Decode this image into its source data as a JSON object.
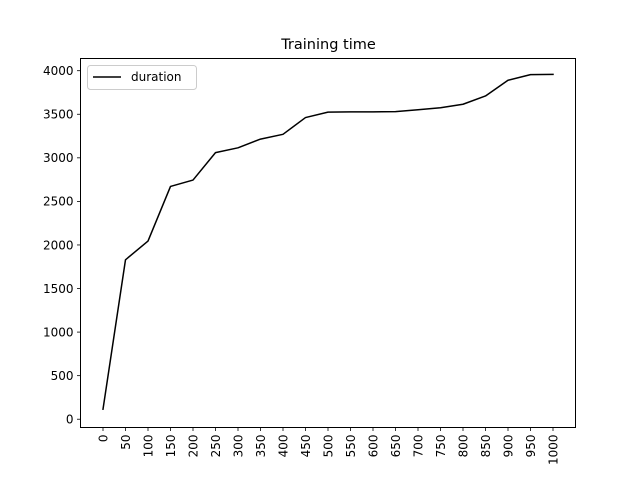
{
  "chart_data": {
    "type": "line",
    "title": "Training time",
    "xlabel": "",
    "ylabel": "",
    "x": [
      0,
      50,
      100,
      150,
      200,
      250,
      300,
      350,
      400,
      450,
      500,
      550,
      600,
      650,
      700,
      750,
      800,
      850,
      900,
      950,
      1000
    ],
    "x_tick_labels": [
      "0",
      "50",
      "100",
      "150",
      "200",
      "250",
      "300",
      "350",
      "400",
      "450",
      "500",
      "550",
      "600",
      "650",
      "700",
      "750",
      "800",
      "850",
      "900",
      "950",
      "1000"
    ],
    "y_ticks": [
      0,
      500,
      1000,
      1500,
      2000,
      2500,
      3000,
      3500,
      4000
    ],
    "y_tick_labels": [
      "0",
      "500",
      "1000",
      "1500",
      "2000",
      "2500",
      "3000",
      "3500",
      "4000"
    ],
    "xlim": [
      -50,
      1050
    ],
    "ylim": [
      -95,
      4140
    ],
    "grid": false,
    "legend_position": "top-left",
    "series": [
      {
        "name": "duration",
        "color": "#000000",
        "values": [
          115,
          1830,
          2045,
          2672,
          2745,
          3060,
          3115,
          3215,
          3270,
          3462,
          3525,
          3527,
          3528,
          3530,
          3552,
          3575,
          3615,
          3710,
          3890,
          3955,
          3957
        ]
      }
    ]
  }
}
